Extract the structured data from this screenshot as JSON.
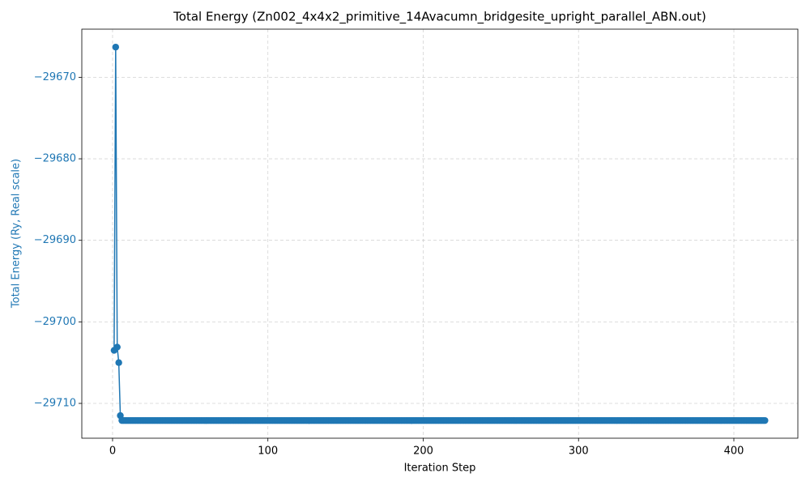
{
  "chart_data": {
    "type": "line",
    "title": "Total Energy (Zn002_4x4x2_primitive_14Avacumn_bridgesite_upright_parallel_ABN.out)",
    "xlabel": "Iteration Step",
    "ylabel": "Total Energy (Ry, Real scale)",
    "x": [
      1,
      2,
      3,
      4,
      5,
      6,
      7,
      8,
      9,
      10,
      11,
      12,
      13,
      14,
      15,
      16,
      17,
      18,
      19,
      20,
      21,
      22,
      23,
      24,
      25,
      26,
      27,
      28,
      29,
      30,
      31,
      32,
      33,
      34,
      35,
      36,
      37,
      38,
      39,
      40,
      41,
      42,
      43,
      44,
      45,
      46,
      47,
      48,
      49,
      50,
      51,
      52,
      53,
      54,
      55,
      56,
      57,
      58,
      59,
      60,
      61,
      62,
      63,
      64,
      65,
      66,
      67,
      68,
      69,
      70,
      71,
      72,
      73,
      74,
      75,
      76,
      77,
      78,
      79,
      80,
      81,
      82,
      83,
      84,
      85,
      86,
      87,
      88,
      89,
      90,
      91,
      92,
      93,
      94,
      95,
      96,
      97,
      98,
      99,
      100,
      101,
      102,
      103,
      104,
      105,
      106,
      107,
      108,
      109,
      110,
      111,
      112,
      113,
      114,
      115,
      116,
      117,
      118,
      119,
      120,
      121,
      122,
      123,
      124,
      125,
      126,
      127,
      128,
      129,
      130,
      131,
      132,
      133,
      134,
      135,
      136,
      137,
      138,
      139,
      140,
      141,
      142,
      143,
      144,
      145,
      146,
      147,
      148,
      149,
      150,
      151,
      152,
      153,
      154,
      155,
      156,
      157,
      158,
      159,
      160,
      161,
      162,
      163,
      164,
      165,
      166,
      167,
      168,
      169,
      170,
      171,
      172,
      173,
      174,
      175,
      176,
      177,
      178,
      179,
      180,
      181,
      182,
      183,
      184,
      185,
      186,
      187,
      188,
      189,
      190,
      191,
      192,
      193,
      194,
      195,
      196,
      197,
      198,
      199,
      200,
      201,
      202,
      203,
      204,
      205,
      206,
      207,
      208,
      209,
      210,
      211,
      212,
      213,
      214,
      215,
      216,
      217,
      218,
      219,
      220,
      221,
      222,
      223,
      224,
      225,
      226,
      227,
      228,
      229,
      230,
      231,
      232,
      233,
      234,
      235,
      236,
      237,
      238,
      239,
      240,
      241,
      242,
      243,
      244,
      245,
      246,
      247,
      248,
      249,
      250,
      251,
      252,
      253,
      254,
      255,
      256,
      257,
      258,
      259,
      260,
      261,
      262,
      263,
      264,
      265,
      266,
      267,
      268,
      269,
      270,
      271,
      272,
      273,
      274,
      275,
      276,
      277,
      278,
      279,
      280,
      281,
      282,
      283,
      284,
      285,
      286,
      287,
      288,
      289,
      290,
      291,
      292,
      293,
      294,
      295,
      296,
      297,
      298,
      299,
      300,
      301,
      302,
      303,
      304,
      305,
      306,
      307,
      308,
      309,
      310,
      311,
      312,
      313,
      314,
      315,
      316,
      317,
      318,
      319,
      320,
      321,
      322,
      323,
      324,
      325,
      326,
      327,
      328,
      329,
      330,
      331,
      332,
      333,
      334,
      335,
      336,
      337,
      338,
      339,
      340,
      341,
      342,
      343,
      344,
      345,
      346,
      347,
      348,
      349,
      350,
      351,
      352,
      353,
      354,
      355,
      356,
      357,
      358,
      359,
      360,
      361,
      362,
      363,
      364,
      365,
      366,
      367,
      368,
      369,
      370,
      371,
      372,
      373,
      374,
      375,
      376,
      377,
      378,
      379,
      380,
      381,
      382,
      383,
      384,
      385,
      386,
      387,
      388,
      389,
      390,
      391,
      392,
      393,
      394,
      395,
      396,
      397,
      398,
      399,
      400,
      401,
      402,
      403,
      404,
      405,
      406,
      407,
      408,
      409,
      410,
      411,
      412,
      413,
      414,
      415,
      416,
      417,
      418,
      419,
      420
    ],
    "series": [
      {
        "color": "#1f77b4",
        "values": [
          -29703.5,
          -29666.3,
          -29703.1,
          -29705.0,
          -29711.5,
          -29712.1,
          -29712.1,
          -29712.1,
          -29712.1,
          -29712.1,
          -29712.1,
          -29712.1,
          -29712.1,
          -29712.1,
          -29712.1,
          -29712.1,
          -29712.1,
          -29712.1,
          -29712.1,
          -29712.1,
          -29712.1,
          -29712.1,
          -29712.1,
          -29712.1,
          -29712.1,
          -29712.1,
          -29712.1,
          -29712.1,
          -29712.1,
          -29712.1,
          -29712.1,
          -29712.1,
          -29712.1,
          -29712.1,
          -29712.1,
          -29712.1,
          -29712.1,
          -29712.1,
          -29712.1,
          -29712.1,
          -29712.1,
          -29712.1,
          -29712.1,
          -29712.1,
          -29712.1,
          -29712.1,
          -29712.1,
          -29712.1,
          -29712.1,
          -29712.1,
          -29712.1,
          -29712.1,
          -29712.1,
          -29712.1,
          -29712.1,
          -29712.1,
          -29712.1,
          -29712.1,
          -29712.1,
          -29712.1,
          -29712.1,
          -29712.1,
          -29712.1,
          -29712.1,
          -29712.1,
          -29712.1,
          -29712.1,
          -29712.1,
          -29712.1,
          -29712.1,
          -29712.1,
          -29712.1,
          -29712.1,
          -29712.1,
          -29712.1,
          -29712.1,
          -29712.1,
          -29712.1,
          -29712.1,
          -29712.1,
          -29712.1,
          -29712.1,
          -29712.1,
          -29712.1,
          -29712.1,
          -29712.1,
          -29712.1,
          -29712.1,
          -29712.1,
          -29712.1,
          -29712.1,
          -29712.1,
          -29712.1,
          -29712.1,
          -29712.1,
          -29712.1,
          -29712.1,
          -29712.1,
          -29712.1,
          -29712.1,
          -29712.1,
          -29712.1,
          -29712.1,
          -29712.1,
          -29712.1,
          -29712.1,
          -29712.1,
          -29712.1,
          -29712.1,
          -29712.1,
          -29712.1,
          -29712.1,
          -29712.1,
          -29712.1,
          -29712.1,
          -29712.1,
          -29712.1,
          -29712.1,
          -29712.1,
          -29712.1,
          -29712.1,
          -29712.1,
          -29712.1,
          -29712.1,
          -29712.1,
          -29712.1,
          -29712.1,
          -29712.1,
          -29712.1,
          -29712.1,
          -29712.1,
          -29712.1,
          -29712.1,
          -29712.1,
          -29712.1,
          -29712.1,
          -29712.1,
          -29712.1,
          -29712.1,
          -29712.1,
          -29712.1,
          -29712.1,
          -29712.1,
          -29712.1,
          -29712.1,
          -29712.1,
          -29712.1,
          -29712.1,
          -29712.1,
          -29712.1,
          -29712.1,
          -29712.1,
          -29712.1,
          -29712.1,
          -29712.1,
          -29712.1,
          -29712.1,
          -29712.1,
          -29712.1,
          -29712.1,
          -29712.1,
          -29712.1,
          -29712.1,
          -29712.1,
          -29712.1,
          -29712.1,
          -29712.1,
          -29712.1,
          -29712.1,
          -29712.1,
          -29712.1,
          -29712.1,
          -29712.1,
          -29712.1,
          -29712.1,
          -29712.1,
          -29712.1,
          -29712.1,
          -29712.1,
          -29712.1,
          -29712.1,
          -29712.1,
          -29712.1,
          -29712.1,
          -29712.1,
          -29712.1,
          -29712.1,
          -29712.1,
          -29712.1,
          -29712.1,
          -29712.1,
          -29712.1,
          -29712.1,
          -29712.1,
          -29712.1,
          -29712.1,
          -29712.1,
          -29712.1,
          -29712.1,
          -29712.1,
          -29712.1,
          -29712.1,
          -29712.1,
          -29712.1,
          -29712.1,
          -29712.1,
          -29712.1,
          -29712.1,
          -29712.1,
          -29712.1,
          -29712.1,
          -29712.1,
          -29712.1,
          -29712.1,
          -29712.1,
          -29712.1,
          -29712.1,
          -29712.1,
          -29712.1,
          -29712.1,
          -29712.1,
          -29712.1,
          -29712.1,
          -29712.1,
          -29712.1,
          -29712.1,
          -29712.1,
          -29712.1,
          -29712.1,
          -29712.1,
          -29712.1,
          -29712.1,
          -29712.1,
          -29712.1,
          -29712.1,
          -29712.1,
          -29712.1,
          -29712.1,
          -29712.1,
          -29712.1,
          -29712.1,
          -29712.1,
          -29712.1,
          -29712.1,
          -29712.1,
          -29712.1,
          -29712.1,
          -29712.1,
          -29712.1,
          -29712.1,
          -29712.1,
          -29712.1,
          -29712.1,
          -29712.1,
          -29712.1,
          -29712.1,
          -29712.1,
          -29712.1,
          -29712.1,
          -29712.1,
          -29712.1,
          -29712.1,
          -29712.1,
          -29712.1,
          -29712.1,
          -29712.1,
          -29712.1,
          -29712.1,
          -29712.1,
          -29712.1,
          -29712.1,
          -29712.1,
          -29712.1,
          -29712.1,
          -29712.1,
          -29712.1,
          -29712.1,
          -29712.1,
          -29712.1,
          -29712.1,
          -29712.1,
          -29712.1,
          -29712.1,
          -29712.1,
          -29712.1,
          -29712.1,
          -29712.1,
          -29712.1,
          -29712.1,
          -29712.1,
          -29712.1,
          -29712.1,
          -29712.1,
          -29712.1,
          -29712.1,
          -29712.1,
          -29712.1,
          -29712.1,
          -29712.1,
          -29712.1,
          -29712.1,
          -29712.1,
          -29712.1,
          -29712.1,
          -29712.1,
          -29712.1,
          -29712.1,
          -29712.1,
          -29712.1,
          -29712.1,
          -29712.1,
          -29712.1,
          -29712.1,
          -29712.1,
          -29712.1,
          -29712.1,
          -29712.1,
          -29712.1,
          -29712.1,
          -29712.1,
          -29712.1,
          -29712.1,
          -29712.1,
          -29712.1,
          -29712.1,
          -29712.1,
          -29712.1,
          -29712.1,
          -29712.1,
          -29712.1,
          -29712.1,
          -29712.1,
          -29712.1,
          -29712.1,
          -29712.1,
          -29712.1,
          -29712.1,
          -29712.1,
          -29712.1,
          -29712.1,
          -29712.1,
          -29712.1,
          -29712.1,
          -29712.1,
          -29712.1,
          -29712.1,
          -29712.1,
          -29712.1,
          -29712.1,
          -29712.1,
          -29712.1,
          -29712.1,
          -29712.1,
          -29712.1,
          -29712.1,
          -29712.1,
          -29712.1,
          -29712.1,
          -29712.1,
          -29712.1,
          -29712.1,
          -29712.1,
          -29712.1,
          -29712.1,
          -29712.1,
          -29712.1,
          -29712.1,
          -29712.1,
          -29712.1,
          -29712.1,
          -29712.1,
          -29712.1,
          -29712.1,
          -29712.1,
          -29712.1,
          -29712.1,
          -29712.1,
          -29712.1,
          -29712.1,
          -29712.1,
          -29712.1,
          -29712.1,
          -29712.1,
          -29712.1,
          -29712.1,
          -29712.1,
          -29712.1,
          -29712.1,
          -29712.1,
          -29712.1,
          -29712.1,
          -29712.1,
          -29712.1,
          -29712.1,
          -29712.1,
          -29712.1,
          -29712.1,
          -29712.1,
          -29712.1,
          -29712.1,
          -29712.1,
          -29712.1,
          -29712.1,
          -29712.1,
          -29712.1,
          -29712.1,
          -29712.1,
          -29712.1,
          -29712.1,
          -29712.1,
          -29712.1,
          -29712.1,
          -29712.1,
          -29712.1,
          -29712.1,
          -29712.1,
          -29712.1,
          -29712.1,
          -29712.1,
          -29712.1
        ]
      }
    ],
    "xlim": [
      -19.8,
      441.2
    ],
    "xticks": [
      0,
      100,
      200,
      300,
      400
    ],
    "ylim": [
      -29714.27,
      -29664.1
    ],
    "yticks": [
      {
        "value": -29710,
        "label": "−29710"
      },
      {
        "value": -29700,
        "label": "−29700"
      },
      {
        "value": -29690,
        "label": "−29690"
      },
      {
        "value": -29680,
        "label": "−29680"
      },
      {
        "value": -29670,
        "label": "−29670"
      }
    ],
    "grid": true
  }
}
